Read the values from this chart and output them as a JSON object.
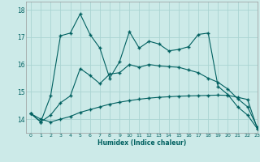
{
  "xlabel": "Humidex (Indice chaleur)",
  "bg_color": "#cceae8",
  "grid_color": "#aad4d2",
  "line_color": "#006060",
  "xlim": [
    -0.5,
    23
  ],
  "ylim": [
    13.5,
    18.3
  ],
  "yticks": [
    14,
    15,
    16,
    17,
    18
  ],
  "xticks": [
    0,
    1,
    2,
    3,
    4,
    5,
    6,
    7,
    8,
    9,
    10,
    11,
    12,
    13,
    14,
    15,
    16,
    17,
    18,
    19,
    20,
    21,
    22,
    23
  ],
  "s1_x": [
    0,
    1,
    2,
    3,
    4,
    5,
    6,
    7,
    8,
    9,
    10,
    11,
    12,
    13,
    14,
    15,
    16,
    17,
    18,
    19,
    20,
    21,
    22,
    23
  ],
  "s1_y": [
    14.2,
    13.9,
    14.85,
    17.05,
    17.15,
    17.85,
    17.1,
    16.6,
    15.5,
    16.1,
    17.2,
    16.6,
    16.85,
    16.75,
    16.5,
    16.55,
    16.65,
    17.1,
    17.15,
    15.2,
    14.9,
    14.45,
    14.15,
    13.65
  ],
  "s2_x": [
    0,
    1,
    2,
    3,
    4,
    5,
    6,
    7,
    8,
    9,
    10,
    11,
    12,
    13,
    14,
    15,
    16,
    17,
    18,
    19,
    20,
    21,
    22,
    23
  ],
  "s2_y": [
    14.2,
    13.9,
    14.15,
    14.6,
    14.85,
    15.85,
    15.6,
    15.3,
    15.65,
    15.7,
    16.0,
    15.9,
    16.0,
    15.95,
    15.92,
    15.9,
    15.8,
    15.7,
    15.5,
    15.35,
    15.1,
    14.75,
    14.45,
    13.7
  ],
  "s3_x": [
    0,
    1,
    2,
    3,
    4,
    5,
    6,
    7,
    8,
    9,
    10,
    11,
    12,
    13,
    14,
    15,
    16,
    17,
    18,
    19,
    20,
    21,
    22,
    23
  ],
  "s3_y": [
    14.2,
    14.0,
    13.9,
    14.0,
    14.1,
    14.25,
    14.35,
    14.45,
    14.55,
    14.62,
    14.68,
    14.73,
    14.77,
    14.8,
    14.82,
    14.84,
    14.85,
    14.86,
    14.87,
    14.88,
    14.87,
    14.8,
    14.72,
    13.65
  ]
}
